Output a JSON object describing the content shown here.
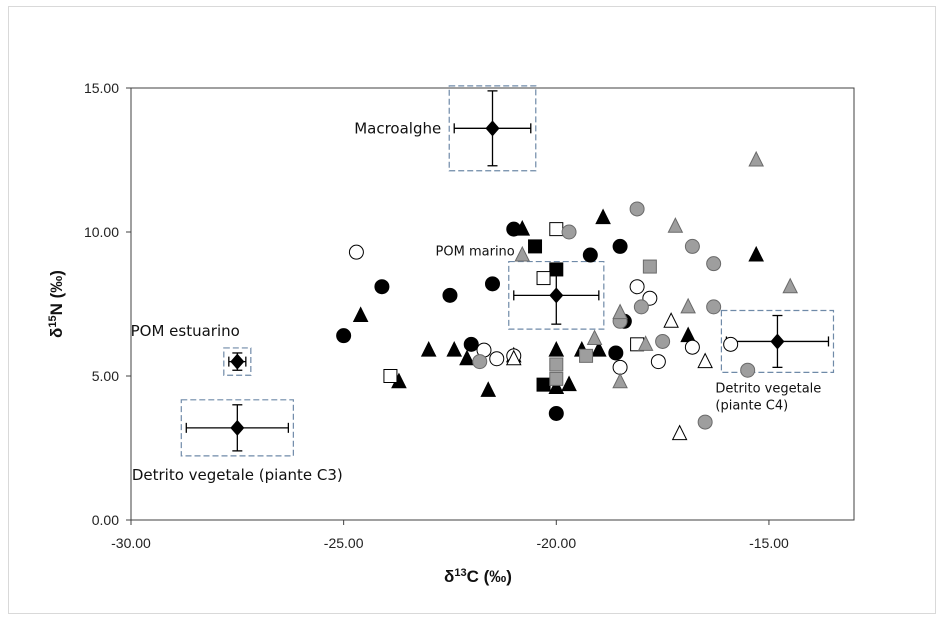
{
  "chart_data": {
    "type": "scatter",
    "title": "",
    "xlabel": "δ13C (‰)",
    "ylabel": "δ15N (‰)",
    "xlim": [
      -30,
      -13
    ],
    "ylim": [
      0,
      15
    ],
    "xticks": [
      "-30.00",
      "-25.00",
      "-20.00",
      "-15.00"
    ],
    "xtick_values": [
      -30,
      -25,
      -20,
      -15
    ],
    "yticks": [
      "0.00",
      "5.00",
      "10.00",
      "15.00"
    ],
    "ytick_values": [
      0,
      5,
      10,
      15
    ],
    "grid": false,
    "legend": "none",
    "colors": {
      "black": "#000000",
      "grey": "#9e9e9e",
      "white": "#ffffff",
      "source_box": "#6f8aa8"
    },
    "series": [
      {
        "marker": "circle",
        "fill": "black",
        "points": [
          [
            -25.0,
            6.4
          ],
          [
            -24.1,
            8.1
          ],
          [
            -22.5,
            7.8
          ],
          [
            -22.0,
            6.1
          ],
          [
            -21.5,
            8.2
          ],
          [
            -21.0,
            10.1
          ],
          [
            -19.2,
            9.2
          ],
          [
            -18.5,
            9.5
          ],
          [
            -18.6,
            5.8
          ],
          [
            -18.4,
            6.9
          ],
          [
            -20.0,
            3.7
          ]
        ]
      },
      {
        "marker": "triangle",
        "fill": "black",
        "points": [
          [
            -24.6,
            7.1
          ],
          [
            -23.7,
            4.8
          ],
          [
            -23.0,
            5.9
          ],
          [
            -22.4,
            5.9
          ],
          [
            -22.1,
            5.6
          ],
          [
            -21.6,
            4.5
          ],
          [
            -21.0,
            5.7
          ],
          [
            -20.8,
            10.1
          ],
          [
            -20.0,
            5.9
          ],
          [
            -20.0,
            4.6
          ],
          [
            -19.7,
            4.7
          ],
          [
            -19.4,
            5.9
          ],
          [
            -19.0,
            5.9
          ],
          [
            -18.9,
            10.5
          ],
          [
            -16.9,
            6.4
          ],
          [
            -15.3,
            9.2
          ]
        ]
      },
      {
        "marker": "square",
        "fill": "black",
        "points": [
          [
            -20.5,
            9.5
          ],
          [
            -20.0,
            8.7
          ],
          [
            -20.3,
            4.7
          ]
        ]
      },
      {
        "marker": "circle",
        "fill": "white",
        "points": [
          [
            -24.7,
            9.3
          ],
          [
            -21.7,
            5.9
          ],
          [
            -21.4,
            5.6
          ],
          [
            -21.0,
            5.7
          ],
          [
            -18.5,
            5.3
          ],
          [
            -18.1,
            8.1
          ],
          [
            -17.8,
            7.7
          ],
          [
            -17.6,
            5.5
          ],
          [
            -16.8,
            6.0
          ],
          [
            -15.9,
            6.1
          ]
        ]
      },
      {
        "marker": "triangle",
        "fill": "white",
        "points": [
          [
            -21.0,
            5.6
          ],
          [
            -17.3,
            6.9
          ],
          [
            -16.5,
            5.5
          ],
          [
            -17.1,
            3.0
          ]
        ]
      },
      {
        "marker": "square",
        "fill": "white",
        "points": [
          [
            -23.9,
            5.0
          ],
          [
            -20.3,
            8.4
          ],
          [
            -20.0,
            10.1
          ],
          [
            -18.1,
            6.1
          ]
        ]
      },
      {
        "marker": "circle",
        "fill": "grey",
        "points": [
          [
            -21.8,
            5.5
          ],
          [
            -19.7,
            10.0
          ],
          [
            -18.1,
            10.8
          ],
          [
            -18.0,
            7.4
          ],
          [
            -17.5,
            6.2
          ],
          [
            -16.8,
            9.5
          ],
          [
            -16.3,
            8.9
          ],
          [
            -16.3,
            7.4
          ],
          [
            -16.5,
            3.4
          ],
          [
            -15.5,
            5.2
          ],
          [
            -18.5,
            6.9
          ]
        ]
      },
      {
        "marker": "triangle",
        "fill": "grey",
        "points": [
          [
            -20.8,
            9.2
          ],
          [
            -19.1,
            6.3
          ],
          [
            -18.5,
            4.8
          ],
          [
            -18.5,
            7.2
          ],
          [
            -17.2,
            10.2
          ],
          [
            -16.9,
            7.4
          ],
          [
            -15.3,
            12.5
          ],
          [
            -14.5,
            8.1
          ],
          [
            -17.9,
            6.1
          ]
        ]
      },
      {
        "marker": "square",
        "fill": "grey",
        "points": [
          [
            -20.0,
            5.4
          ],
          [
            -19.3,
            5.7
          ],
          [
            -17.8,
            8.8
          ],
          [
            -20.0,
            4.9
          ]
        ]
      }
    ],
    "sources": [
      {
        "label": "Macroalghe",
        "x": -21.5,
        "y": 13.6,
        "x_err": 0.9,
        "y_err": 1.3,
        "box": true
      },
      {
        "label": "POM marino",
        "x": -20.0,
        "y": 7.8,
        "x_err": 1.0,
        "y_err": 1.0,
        "box": true
      },
      {
        "label": "POM estuarino",
        "x": -27.5,
        "y": 5.5,
        "x_err": 0.2,
        "y_err": 0.3,
        "box": true
      },
      {
        "label": "Detrito vegetale (piante C3)",
        "x": -27.5,
        "y": 3.2,
        "x_err": 1.2,
        "y_err": 0.8,
        "box": true
      },
      {
        "label": "Detrito vegetale\n(piante C4)",
        "x": -14.8,
        "y": 6.2,
        "x_err": 1.2,
        "y_err": 0.9,
        "box": true
      }
    ]
  }
}
